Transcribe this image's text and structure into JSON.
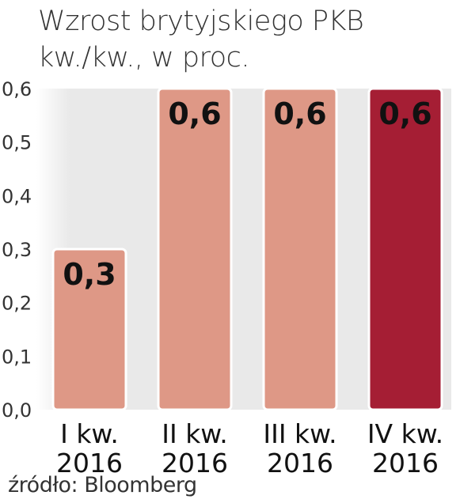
{
  "title_line1": "Wzrost brytyjskiego PKB",
  "title_line2": "kw./kw., w proc.",
  "source": "źródło: Bloomberg",
  "colors": {
    "bar": "#de9886",
    "highlight": "#a51e34",
    "bar_stroke": "#ffffff",
    "plot_bg": "#e9e9e9"
  },
  "chart_data": {
    "type": "bar",
    "title": "Wzrost brytyjskiego PKB kw./kw., w proc.",
    "categories": [
      [
        "I kw.",
        "2016"
      ],
      [
        "II kw.",
        "2016"
      ],
      [
        "III kw.",
        "2016"
      ],
      [
        "IV kw.",
        "2016"
      ]
    ],
    "values": [
      0.3,
      0.6,
      0.6,
      0.6
    ],
    "data_labels": [
      "0,3",
      "0,6",
      "0,6",
      "0,6"
    ],
    "highlight_index": 3,
    "ylim": [
      0,
      0.6
    ],
    "yticks": [
      "0,0",
      "0,1",
      "0,2",
      "0,3",
      "0,4",
      "0,5",
      "0,6"
    ],
    "grid": false
  }
}
